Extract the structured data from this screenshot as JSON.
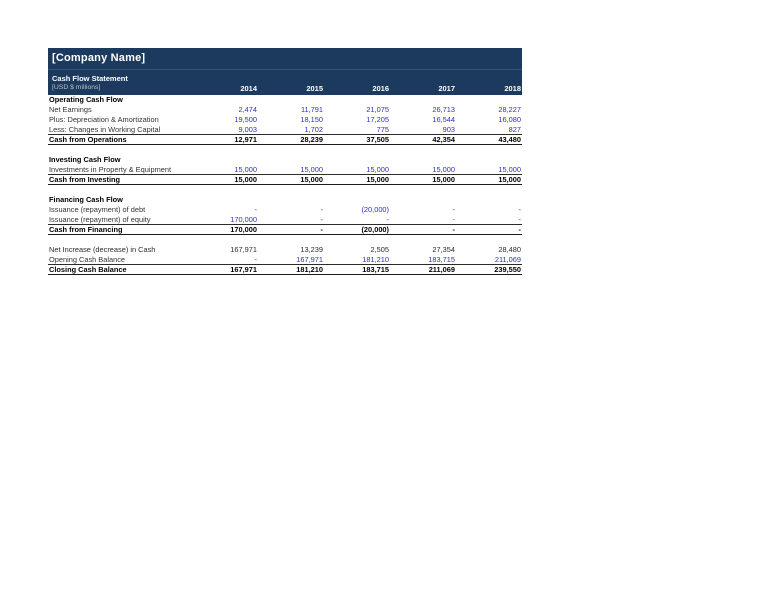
{
  "statement": {
    "company_name": "[Company Name]",
    "title": "Cash Flow Statement",
    "units_label": "[USD $ millions]",
    "years": [
      "2014",
      "2015",
      "2016",
      "2017",
      "2018"
    ],
    "colors": {
      "header_bg": "#1C3A5E",
      "header_text": "#FFFFFF",
      "input_value": "#2E2EC8",
      "total_text": "#000000"
    },
    "rows": [
      {
        "type": "section",
        "label": "Operating Cash Flow",
        "values": [
          "",
          "",
          "",
          "",
          ""
        ]
      },
      {
        "type": "input",
        "label": "Net Earnings",
        "values": [
          "2,474",
          "11,791",
          "21,075",
          "26,713",
          "28,227"
        ]
      },
      {
        "type": "input",
        "label": "Plus: Depreciation & Amortization",
        "values": [
          "19,500",
          "18,150",
          "17,205",
          "16,544",
          "16,080"
        ]
      },
      {
        "type": "input underline",
        "label": "Less: Changes in Working Capital",
        "values": [
          "9,003",
          "1,702",
          "775",
          "903",
          "827"
        ]
      },
      {
        "type": "total",
        "label": "Cash from Operations",
        "values": [
          "12,971",
          "28,239",
          "37,505",
          "42,354",
          "43,480"
        ]
      },
      {
        "type": "blank",
        "label": "",
        "values": [
          "",
          "",
          "",
          "",
          ""
        ]
      },
      {
        "type": "section",
        "label": "Investing Cash Flow",
        "values": [
          "",
          "",
          "",
          "",
          ""
        ]
      },
      {
        "type": "input underline",
        "label": "Investments in Property & Equipment",
        "values": [
          "15,000",
          "15,000",
          "15,000",
          "15,000",
          "15,000"
        ]
      },
      {
        "type": "total",
        "label": "Cash from Investing",
        "values": [
          "15,000",
          "15,000",
          "15,000",
          "15,000",
          "15,000"
        ]
      },
      {
        "type": "blank",
        "label": "",
        "values": [
          "",
          "",
          "",
          "",
          ""
        ]
      },
      {
        "type": "section",
        "label": "Financing Cash Flow",
        "values": [
          "",
          "",
          "",
          "",
          ""
        ]
      },
      {
        "type": "input",
        "label": "Issuance (repayment) of debt",
        "values": [
          "-",
          "-",
          "(20,000)",
          "-",
          "-"
        ]
      },
      {
        "type": "input underline",
        "label": "Issuance (repayment) of equity",
        "values": [
          "170,000",
          "-",
          "-",
          "-",
          "-"
        ]
      },
      {
        "type": "total",
        "label": "Cash from Financing",
        "values": [
          "170,000",
          "-",
          "(20,000)",
          "-",
          "-"
        ]
      },
      {
        "type": "blank",
        "label": "",
        "values": [
          "",
          "",
          "",
          "",
          ""
        ]
      },
      {
        "type": "calc",
        "label": "Net Increase (decrease) in Cash",
        "values": [
          "167,971",
          "13,239",
          "2,505",
          "27,354",
          "28,480"
        ]
      },
      {
        "type": "input underline",
        "label": "Opening Cash Balance",
        "values": [
          "-",
          "167,971",
          "181,210",
          "183,715",
          "211,069"
        ]
      },
      {
        "type": "total",
        "label": "Closing Cash Balance",
        "values": [
          "167,971",
          "181,210",
          "183,715",
          "211,069",
          "239,550"
        ]
      }
    ]
  }
}
